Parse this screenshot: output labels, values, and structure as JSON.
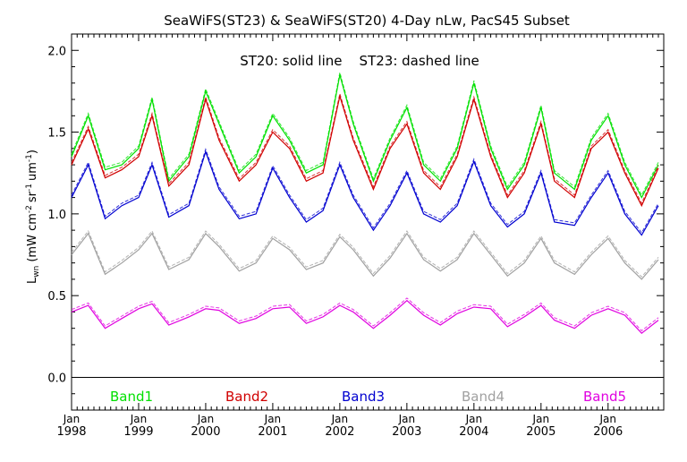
{
  "chart_data": {
    "type": "line",
    "title": "SeaWiFS(ST23) & SeaWiFS(ST20) 4-Day nLw, PacS45 Subset",
    "annotation": "ST20: solid line    ST23: dashed line",
    "ylabel": "L_wn (mW cm^-2 sr^-1 um^-1)",
    "ylabel_main": "L",
    "ylabel_sub": "wn",
    "ylabel_units": "(mW cm",
    "ylabel_exp1": "-2",
    "ylabel_mid": "sr",
    "ylabel_exp2": "-1",
    "ylabel_end": "um",
    "ylabel_exp3": "-1",
    "ylabel_close": ")",
    "ylim": [
      -0.2,
      2.1
    ],
    "xlim": [
      1998.0,
      2006.83
    ],
    "yticks": [
      "0.0",
      "0.5",
      "1.0",
      "1.5",
      "2.0"
    ],
    "xtick_month": "Jan",
    "xticks": [
      "1998",
      "1999",
      "2000",
      "2001",
      "2002",
      "2003",
      "2004",
      "2005",
      "2006"
    ],
    "zero_line": 0.0,
    "legend_placement": "bottom, inside plot",
    "series": [
      {
        "name": "Band1",
        "color": "#00e000",
        "x": [
          1998.0,
          1998.25,
          1998.5,
          1998.75,
          1999.0,
          1999.2,
          1999.45,
          1999.75,
          2000.0,
          2000.2,
          2000.5,
          2000.75,
          2001.0,
          2001.25,
          2001.5,
          2001.75,
          2002.0,
          2002.2,
          2002.5,
          2002.75,
          2003.0,
          2003.25,
          2003.5,
          2003.75,
          2004.0,
          2004.25,
          2004.5,
          2004.75,
          2005.0,
          2005.2,
          2005.5,
          2005.75,
          2006.0,
          2006.25,
          2006.5,
          2006.75
        ],
        "values": [
          1.35,
          1.6,
          1.27,
          1.3,
          1.4,
          1.7,
          1.2,
          1.35,
          1.75,
          1.55,
          1.25,
          1.35,
          1.6,
          1.45,
          1.25,
          1.3,
          1.85,
          1.55,
          1.2,
          1.45,
          1.65,
          1.3,
          1.2,
          1.4,
          1.8,
          1.4,
          1.15,
          1.3,
          1.65,
          1.25,
          1.15,
          1.45,
          1.6,
          1.3,
          1.1,
          1.3
        ]
      },
      {
        "name": "Band2",
        "color": "#d00000",
        "x": [
          1998.0,
          1998.25,
          1998.5,
          1998.75,
          1999.0,
          1999.2,
          1999.45,
          1999.75,
          2000.0,
          2000.2,
          2000.5,
          2000.75,
          2001.0,
          2001.25,
          2001.5,
          2001.75,
          2002.0,
          2002.2,
          2002.5,
          2002.75,
          2003.0,
          2003.25,
          2003.5,
          2003.75,
          2004.0,
          2004.25,
          2004.5,
          2004.75,
          2005.0,
          2005.2,
          2005.5,
          2005.75,
          2006.0,
          2006.25,
          2006.5,
          2006.75
        ],
        "values": [
          1.3,
          1.52,
          1.22,
          1.27,
          1.35,
          1.6,
          1.17,
          1.3,
          1.7,
          1.45,
          1.2,
          1.3,
          1.5,
          1.4,
          1.2,
          1.25,
          1.72,
          1.45,
          1.15,
          1.4,
          1.55,
          1.25,
          1.15,
          1.35,
          1.7,
          1.35,
          1.1,
          1.25,
          1.55,
          1.2,
          1.1,
          1.4,
          1.5,
          1.25,
          1.05,
          1.28
        ]
      },
      {
        "name": "Band3",
        "color": "#0000d0",
        "x": [
          1998.0,
          1998.25,
          1998.5,
          1998.75,
          1999.0,
          1999.2,
          1999.45,
          1999.75,
          2000.0,
          2000.2,
          2000.5,
          2000.75,
          2001.0,
          2001.25,
          2001.5,
          2001.75,
          2002.0,
          2002.2,
          2002.5,
          2002.75,
          2003.0,
          2003.25,
          2003.5,
          2003.75,
          2004.0,
          2004.25,
          2004.5,
          2004.75,
          2005.0,
          2005.2,
          2005.5,
          2005.75,
          2006.0,
          2006.25,
          2006.5,
          2006.75
        ],
        "values": [
          1.1,
          1.3,
          0.97,
          1.05,
          1.1,
          1.3,
          0.98,
          1.05,
          1.38,
          1.15,
          0.97,
          1.0,
          1.28,
          1.1,
          0.95,
          1.02,
          1.3,
          1.1,
          0.9,
          1.05,
          1.25,
          1.0,
          0.95,
          1.05,
          1.32,
          1.05,
          0.92,
          1.0,
          1.25,
          0.95,
          0.93,
          1.1,
          1.25,
          1.0,
          0.87,
          1.05
        ]
      },
      {
        "name": "Band4",
        "color": "#a0a0a0",
        "x": [
          1998.0,
          1998.25,
          1998.5,
          1998.75,
          1999.0,
          1999.2,
          1999.45,
          1999.75,
          2000.0,
          2000.2,
          2000.5,
          2000.75,
          2001.0,
          2001.25,
          2001.5,
          2001.75,
          2002.0,
          2002.2,
          2002.5,
          2002.75,
          2003.0,
          2003.25,
          2003.5,
          2003.75,
          2004.0,
          2004.25,
          2004.5,
          2004.75,
          2005.0,
          2005.2,
          2005.5,
          2005.75,
          2006.0,
          2006.25,
          2006.5,
          2006.75
        ],
        "values": [
          0.75,
          0.88,
          0.63,
          0.7,
          0.78,
          0.88,
          0.66,
          0.72,
          0.88,
          0.8,
          0.65,
          0.7,
          0.85,
          0.78,
          0.66,
          0.7,
          0.86,
          0.78,
          0.62,
          0.73,
          0.88,
          0.72,
          0.65,
          0.72,
          0.88,
          0.75,
          0.62,
          0.7,
          0.85,
          0.7,
          0.63,
          0.75,
          0.85,
          0.7,
          0.6,
          0.72
        ]
      },
      {
        "name": "Band5",
        "color": "#e000e0",
        "x": [
          1998.0,
          1998.25,
          1998.5,
          1998.75,
          1999.0,
          1999.2,
          1999.45,
          1999.75,
          2000.0,
          2000.2,
          2000.5,
          2000.75,
          2001.0,
          2001.25,
          2001.5,
          2001.75,
          2002.0,
          2002.2,
          2002.5,
          2002.75,
          2003.0,
          2003.25,
          2003.5,
          2003.75,
          2004.0,
          2004.25,
          2004.5,
          2004.75,
          2005.0,
          2005.2,
          2005.5,
          2005.75,
          2006.0,
          2006.25,
          2006.5,
          2006.75
        ],
        "values": [
          0.4,
          0.44,
          0.3,
          0.36,
          0.42,
          0.45,
          0.32,
          0.37,
          0.42,
          0.41,
          0.33,
          0.36,
          0.42,
          0.43,
          0.33,
          0.37,
          0.44,
          0.4,
          0.3,
          0.38,
          0.47,
          0.38,
          0.32,
          0.39,
          0.43,
          0.42,
          0.31,
          0.37,
          0.44,
          0.35,
          0.3,
          0.38,
          0.42,
          0.38,
          0.27,
          0.35
        ]
      }
    ]
  }
}
